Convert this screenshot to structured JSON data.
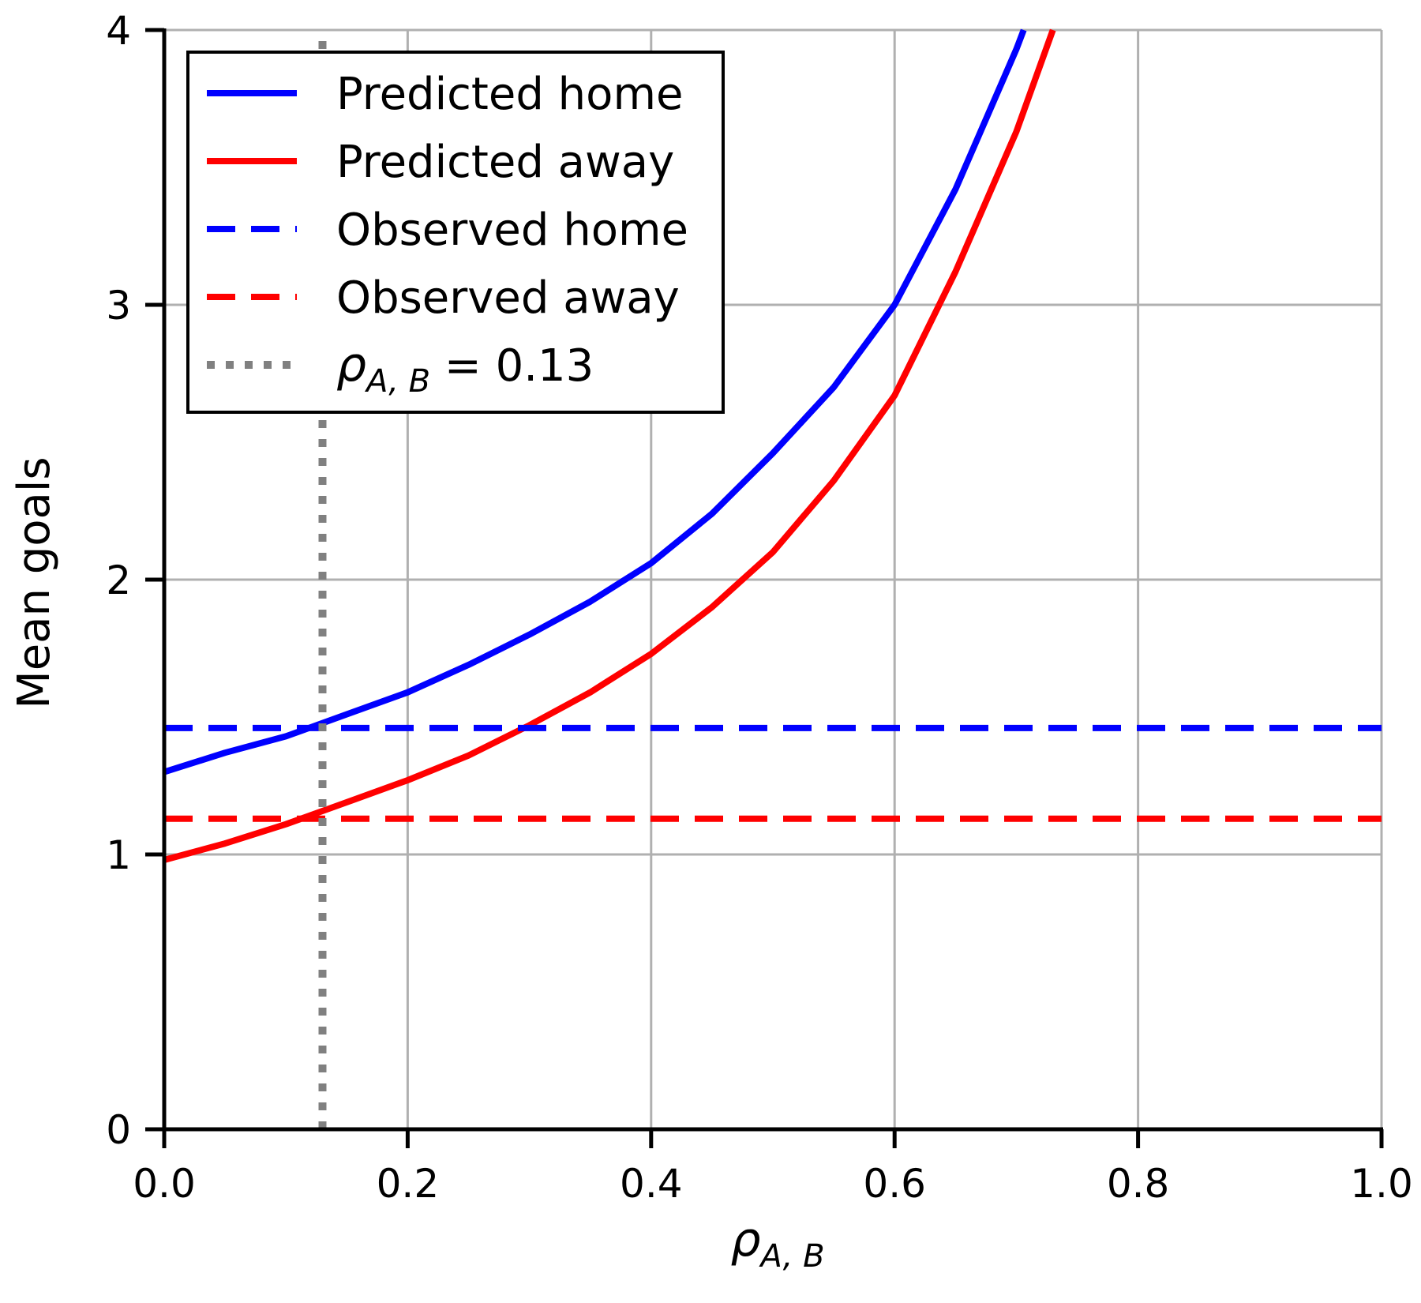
{
  "chart_data": {
    "type": "line",
    "title": "",
    "xlabel": {
      "base": "ρ",
      "sub": "A, B"
    },
    "ylabel": "Mean goals",
    "xlim": [
      0.0,
      1.0
    ],
    "ylim": [
      0,
      4
    ],
    "xticks": [
      "0.0",
      "0.2",
      "0.4",
      "0.6",
      "0.8",
      "1.0"
    ],
    "yticks": [
      "0",
      "1",
      "2",
      "3",
      "4"
    ],
    "grid": true,
    "legend_position": "top-left",
    "series": [
      {
        "name": "Predicted home",
        "color": "#0000ff",
        "style": "solid",
        "x": [
          0.0,
          0.05,
          0.1,
          0.15,
          0.2,
          0.25,
          0.3,
          0.35,
          0.4,
          0.45,
          0.5,
          0.55,
          0.6,
          0.65,
          0.7,
          0.706
        ],
        "y": [
          1.3,
          1.37,
          1.43,
          1.51,
          1.59,
          1.69,
          1.8,
          1.92,
          2.06,
          2.24,
          2.46,
          2.7,
          3.0,
          3.42,
          3.93,
          4.0
        ]
      },
      {
        "name": "Predicted away",
        "color": "#ff0000",
        "style": "solid",
        "x": [
          0.0,
          0.05,
          0.1,
          0.15,
          0.2,
          0.25,
          0.3,
          0.35,
          0.4,
          0.45,
          0.5,
          0.55,
          0.6,
          0.65,
          0.7,
          0.73
        ],
        "y": [
          0.98,
          1.04,
          1.11,
          1.19,
          1.27,
          1.36,
          1.47,
          1.59,
          1.73,
          1.9,
          2.1,
          2.36,
          2.67,
          3.12,
          3.63,
          4.0
        ]
      },
      {
        "name": "Observed home",
        "color": "#0000ff",
        "style": "dashed",
        "x": [
          0.0,
          1.0
        ],
        "y": [
          1.46,
          1.46
        ]
      },
      {
        "name": "Observed away",
        "color": "#ff0000",
        "style": "dashed",
        "x": [
          0.0,
          1.0
        ],
        "y": [
          1.13,
          1.13
        ]
      },
      {
        "name": "ρA, B = 0.13",
        "name_parts": {
          "base": "ρ",
          "sub": "A, B",
          "rest": " = 0.13"
        },
        "color": "#808080",
        "style": "dotted",
        "x": [
          0.13,
          0.13
        ],
        "y": [
          0,
          4
        ]
      }
    ]
  }
}
